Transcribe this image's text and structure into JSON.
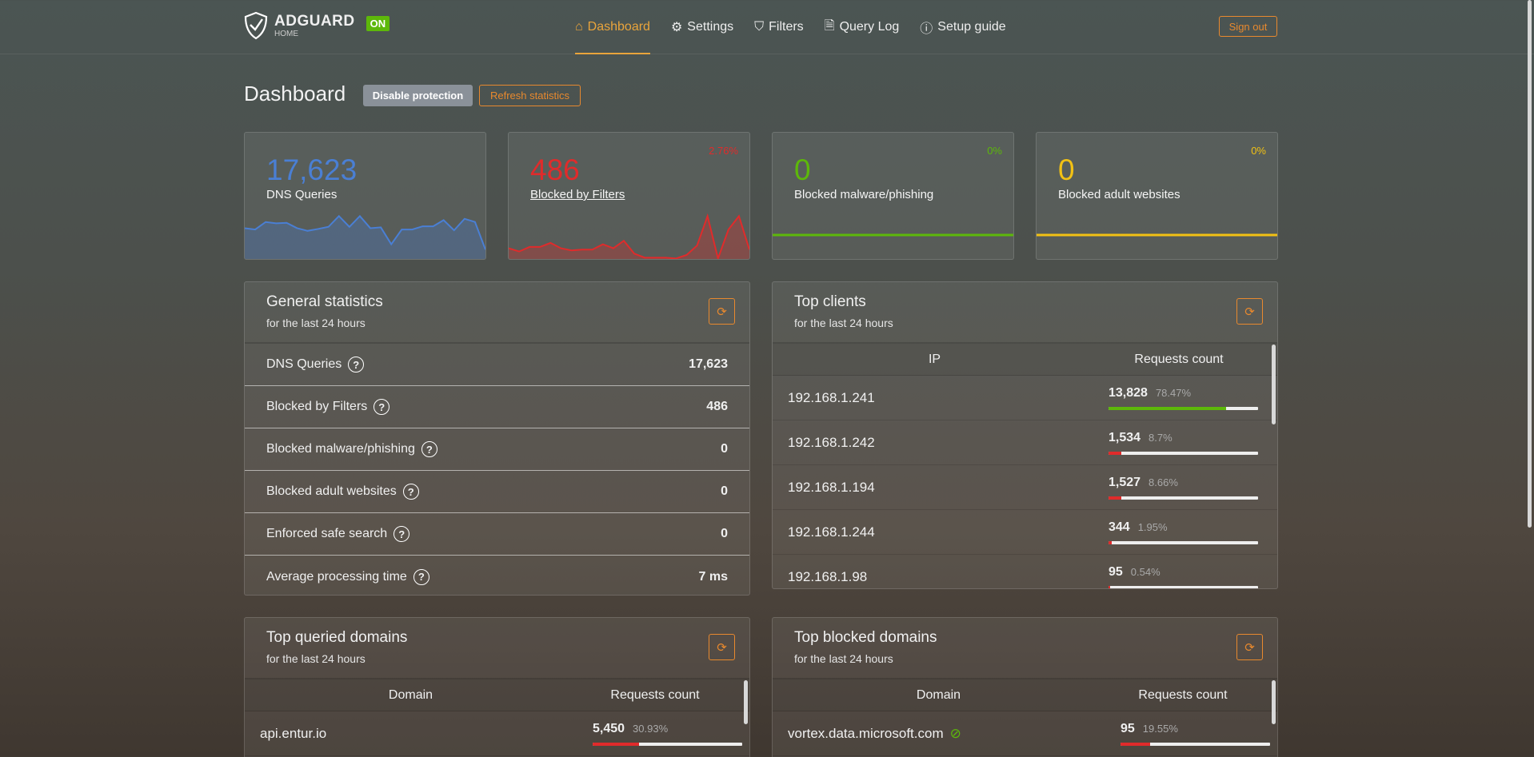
{
  "brand": {
    "name": "ADGUARD",
    "sub": "HOME",
    "status": "ON"
  },
  "nav": [
    {
      "label": "Dashboard",
      "icon": "home-icon",
      "active": true
    },
    {
      "label": "Settings",
      "icon": "gear-icon"
    },
    {
      "label": "Filters",
      "icon": "filter-icon"
    },
    {
      "label": "Query Log",
      "icon": "document-icon"
    },
    {
      "label": "Setup guide",
      "icon": "help-circle-icon"
    }
  ],
  "signout": "Sign out",
  "page": {
    "title": "Dashboard",
    "disable": "Disable protection",
    "refresh": "Refresh statistics"
  },
  "colors": {
    "accent": "#e9a43b",
    "blue": "#4a7fd4",
    "red": "#e02b2b",
    "green": "#5db80a",
    "yellow": "#f2c114"
  },
  "stats": [
    {
      "value": "17,623",
      "label": "DNS Queries",
      "percent": "",
      "color": "#4a7fd4",
      "spark": [
        115,
        110,
        138,
        133,
        135,
        115,
        105,
        112,
        120,
        160,
        120,
        160,
        115,
        118,
        55,
        110,
        110,
        122,
        122,
        145,
        107,
        150,
        138,
        35
      ]
    },
    {
      "value": "486",
      "label": "Blocked by Filters",
      "percent": "2.76%",
      "color": "#e02b2b",
      "spark": [
        40,
        28,
        45,
        45,
        60,
        40,
        32,
        35,
        35,
        55,
        40,
        68,
        20,
        5,
        5,
        5,
        2,
        15,
        50,
        160,
        2,
        110,
        160,
        35
      ]
    },
    {
      "value": "0",
      "label": "Blocked malware/phishing",
      "percent": "0%",
      "color": "#5db80a",
      "spark": []
    },
    {
      "value": "0",
      "label": "Blocked adult websites",
      "percent": "0%",
      "color": "#f2c114",
      "spark": []
    }
  ],
  "general": {
    "title": "General statistics",
    "subtitle": "for the last 24 hours",
    "rows": [
      {
        "label": "DNS Queries",
        "value": "17,623"
      },
      {
        "label": "Blocked by Filters",
        "value": "486"
      },
      {
        "label": "Blocked malware/phishing",
        "value": "0"
      },
      {
        "label": "Blocked adult websites",
        "value": "0"
      },
      {
        "label": "Enforced safe search",
        "value": "0"
      },
      {
        "label": "Average processing time",
        "value": "7 ms"
      }
    ]
  },
  "clients": {
    "title": "Top clients",
    "subtitle": "for the last 24 hours",
    "col1": "IP",
    "col2": "Requests count",
    "rows": [
      {
        "name": "192.168.1.241",
        "count": "13,828",
        "percent": "78.47%",
        "fill": 78.47,
        "color": "#5db80a"
      },
      {
        "name": "192.168.1.242",
        "count": "1,534",
        "percent": "8.7%",
        "fill": 8.7,
        "color": "#e02b2b"
      },
      {
        "name": "192.168.1.194",
        "count": "1,527",
        "percent": "8.66%",
        "fill": 8.66,
        "color": "#e02b2b"
      },
      {
        "name": "192.168.1.244",
        "count": "344",
        "percent": "1.95%",
        "fill": 1.95,
        "color": "#e02b2b"
      },
      {
        "name": "192.168.1.98",
        "count": "95",
        "percent": "0.54%",
        "fill": 0.54,
        "color": "#e02b2b"
      }
    ]
  },
  "queried": {
    "title": "Top queried domains",
    "subtitle": "for the last 24 hours",
    "col1": "Domain",
    "col2": "Requests count",
    "rows": [
      {
        "name": "api.entur.io",
        "count": "5,450",
        "percent": "30.93%",
        "fill": 30.93,
        "color": "#e02b2b"
      }
    ]
  },
  "blocked": {
    "title": "Top blocked domains",
    "subtitle": "for the last 24 hours",
    "col1": "Domain",
    "col2": "Requests count",
    "rows": [
      {
        "name": "vortex.data.microsoft.com",
        "count": "95",
        "percent": "19.55%",
        "fill": 19.55,
        "color": "#e02b2b",
        "icon": "unblock-eye-icon"
      }
    ]
  }
}
